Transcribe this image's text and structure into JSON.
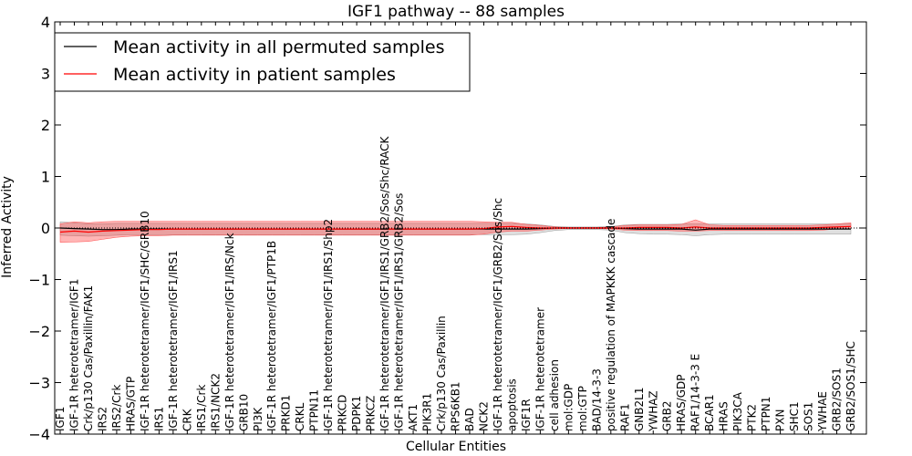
{
  "chart_data": {
    "type": "line",
    "title": "IGF1 pathway -- 88 samples",
    "xlabel": "Cellular Entities",
    "ylabel": "Inferred Activity",
    "ylim": [
      -4,
      4
    ],
    "yticks": [
      4,
      3,
      2,
      1,
      0,
      -1,
      -2,
      -3,
      -4
    ],
    "ytick_labels": [
      "4",
      "3",
      "2",
      "1",
      "0",
      "−1",
      "−2",
      "−3",
      "−4"
    ],
    "grid": false,
    "legend_position": "top-left",
    "categories": [
      "IGF1",
      "IGF-1R heterotetramer/IGF1",
      "Crk/p130 Cas/Paxillin/FAK1",
      "IRS2",
      "IRS2/Crk",
      "HRAS/GTP",
      "IGF-1R heterotetramer/IGF1/SHC/GRB10",
      "IRS1",
      "IGF-1R heterotetramer/IGF1/IRS1",
      "CRK",
      "IRS1/Crk",
      "IRS1/NCK2",
      "IGF-1R heterotetramer/IGF1/IRS/Nck",
      "GRB10",
      "PI3K",
      "IGF-1R heterotetramer/IGF1/PTP1B",
      "PRKD1",
      "CRKL",
      "PTPN11",
      "IGF-1R heterotetramer/IGF1/IRS1/Shp2",
      "PRKCD",
      "PDPK1",
      "PRKCZ",
      "IGF-1R heterotetramer/IGF1/IRS1/GRB2/Sos/Shc/RACK",
      "IGF-1R heterotetramer/IGF1/IRS1/GRB2/Sos",
      "AKT1",
      "PIK3R1",
      "Crk/p130 Cas/Paxillin",
      "RPS6KB1",
      "BAD",
      "NCK2",
      "IGF-1R heterotetramer/IGF1/GRB2/Sos/Shc",
      "apoptosis",
      "IGF1R",
      "IGF-1R heterotetramer",
      "cell adhesion",
      "mol:GDP",
      "mol:GTP",
      "BAD/14-3-3",
      "positive regulation of MAPKKK cascade",
      "RAF1",
      "GNB2L1",
      "YWHAZ",
      "GRB2",
      "HRAS/GDP",
      "RAF1/14-3-3 E",
      "BCAR1",
      "HRAS",
      "PIK3CA",
      "PTK2",
      "PTPN1",
      "PXN",
      "SHC1",
      "SOS1",
      "YWHAE",
      "GRB2/SOS1",
      "GRB2/SOS1/SHC"
    ],
    "series": [
      {
        "name": "Mean activity in all permuted samples",
        "color": "#000000",
        "values": [
          0.0,
          -0.01,
          -0.02,
          -0.03,
          -0.03,
          -0.02,
          -0.02,
          -0.02,
          -0.02,
          -0.02,
          -0.02,
          -0.02,
          -0.02,
          -0.02,
          -0.02,
          -0.02,
          -0.02,
          -0.02,
          -0.02,
          -0.02,
          -0.02,
          -0.02,
          -0.02,
          -0.02,
          -0.02,
          -0.02,
          -0.02,
          -0.02,
          -0.02,
          -0.02,
          -0.02,
          -0.02,
          -0.02,
          -0.02,
          -0.01,
          0.0,
          0.0,
          0.0,
          0.0,
          0.0,
          -0.01,
          -0.02,
          -0.02,
          -0.02,
          -0.02,
          -0.04,
          -0.02,
          -0.02,
          -0.02,
          -0.02,
          -0.02,
          -0.02,
          -0.02,
          -0.02,
          -0.02,
          -0.02,
          -0.02
        ],
        "band_low": [
          -0.14,
          -0.15,
          -0.16,
          -0.15,
          -0.14,
          -0.13,
          -0.13,
          -0.13,
          -0.13,
          -0.13,
          -0.13,
          -0.13,
          -0.13,
          -0.13,
          -0.13,
          -0.13,
          -0.13,
          -0.13,
          -0.13,
          -0.13,
          -0.13,
          -0.13,
          -0.13,
          -0.13,
          -0.13,
          -0.13,
          -0.13,
          -0.13,
          -0.13,
          -0.13,
          -0.13,
          -0.13,
          -0.13,
          -0.12,
          -0.09,
          -0.05,
          -0.03,
          -0.03,
          -0.03,
          -0.04,
          -0.09,
          -0.11,
          -0.12,
          -0.12,
          -0.13,
          -0.15,
          -0.13,
          -0.12,
          -0.12,
          -0.12,
          -0.12,
          -0.12,
          -0.12,
          -0.12,
          -0.12,
          -0.12,
          -0.12
        ],
        "band_high": [
          0.12,
          0.1,
          0.08,
          0.08,
          0.09,
          0.09,
          0.09,
          0.09,
          0.09,
          0.09,
          0.09,
          0.09,
          0.09,
          0.09,
          0.09,
          0.09,
          0.09,
          0.09,
          0.09,
          0.09,
          0.09,
          0.09,
          0.09,
          0.09,
          0.09,
          0.09,
          0.09,
          0.09,
          0.09,
          0.09,
          0.09,
          0.09,
          0.09,
          0.08,
          0.06,
          0.03,
          0.02,
          0.02,
          0.02,
          0.03,
          0.06,
          0.07,
          0.07,
          0.07,
          0.08,
          0.08,
          0.08,
          0.08,
          0.08,
          0.08,
          0.08,
          0.08,
          0.08,
          0.08,
          0.08,
          0.08,
          0.08
        ]
      },
      {
        "name": "Mean activity in patient samples",
        "color": "#ff0000",
        "values": [
          -0.08,
          -0.06,
          -0.08,
          -0.06,
          -0.05,
          -0.04,
          -0.03,
          -0.03,
          -0.02,
          -0.02,
          -0.02,
          -0.02,
          -0.02,
          -0.02,
          -0.02,
          -0.02,
          -0.02,
          -0.02,
          -0.02,
          -0.02,
          -0.02,
          -0.02,
          -0.02,
          -0.02,
          -0.02,
          -0.02,
          -0.02,
          -0.02,
          -0.02,
          -0.02,
          -0.01,
          0.02,
          0.03,
          0.01,
          0.0,
          0.0,
          0.0,
          0.0,
          0.0,
          0.0,
          0.0,
          0.01,
          0.01,
          0.01,
          0.0,
          0.02,
          0.0,
          0.0,
          0.0,
          0.0,
          0.0,
          0.0,
          0.0,
          0.0,
          0.01,
          0.02,
          0.03
        ],
        "band_low": [
          -0.28,
          -0.27,
          -0.26,
          -0.22,
          -0.18,
          -0.16,
          -0.15,
          -0.15,
          -0.14,
          -0.14,
          -0.14,
          -0.14,
          -0.14,
          -0.14,
          -0.14,
          -0.14,
          -0.14,
          -0.14,
          -0.14,
          -0.14,
          -0.14,
          -0.14,
          -0.14,
          -0.14,
          -0.14,
          -0.14,
          -0.14,
          -0.14,
          -0.14,
          -0.14,
          -0.12,
          -0.08,
          -0.06,
          -0.06,
          -0.04,
          -0.02,
          -0.01,
          -0.01,
          -0.01,
          -0.02,
          -0.04,
          -0.05,
          -0.05,
          -0.05,
          -0.06,
          -0.06,
          -0.05,
          -0.05,
          -0.05,
          -0.05,
          -0.05,
          -0.05,
          -0.05,
          -0.05,
          -0.04,
          -0.02,
          -0.01
        ],
        "band_high": [
          0.08,
          0.12,
          0.1,
          0.12,
          0.13,
          0.13,
          0.13,
          0.13,
          0.13,
          0.13,
          0.13,
          0.13,
          0.13,
          0.13,
          0.13,
          0.13,
          0.13,
          0.13,
          0.13,
          0.13,
          0.13,
          0.13,
          0.13,
          0.13,
          0.13,
          0.13,
          0.13,
          0.13,
          0.13,
          0.13,
          0.12,
          0.11,
          0.11,
          0.07,
          0.05,
          0.02,
          0.01,
          0.01,
          0.01,
          0.02,
          0.05,
          0.06,
          0.06,
          0.06,
          0.07,
          0.16,
          0.06,
          0.05,
          0.05,
          0.05,
          0.05,
          0.05,
          0.05,
          0.05,
          0.06,
          0.08,
          0.1
        ]
      }
    ]
  }
}
